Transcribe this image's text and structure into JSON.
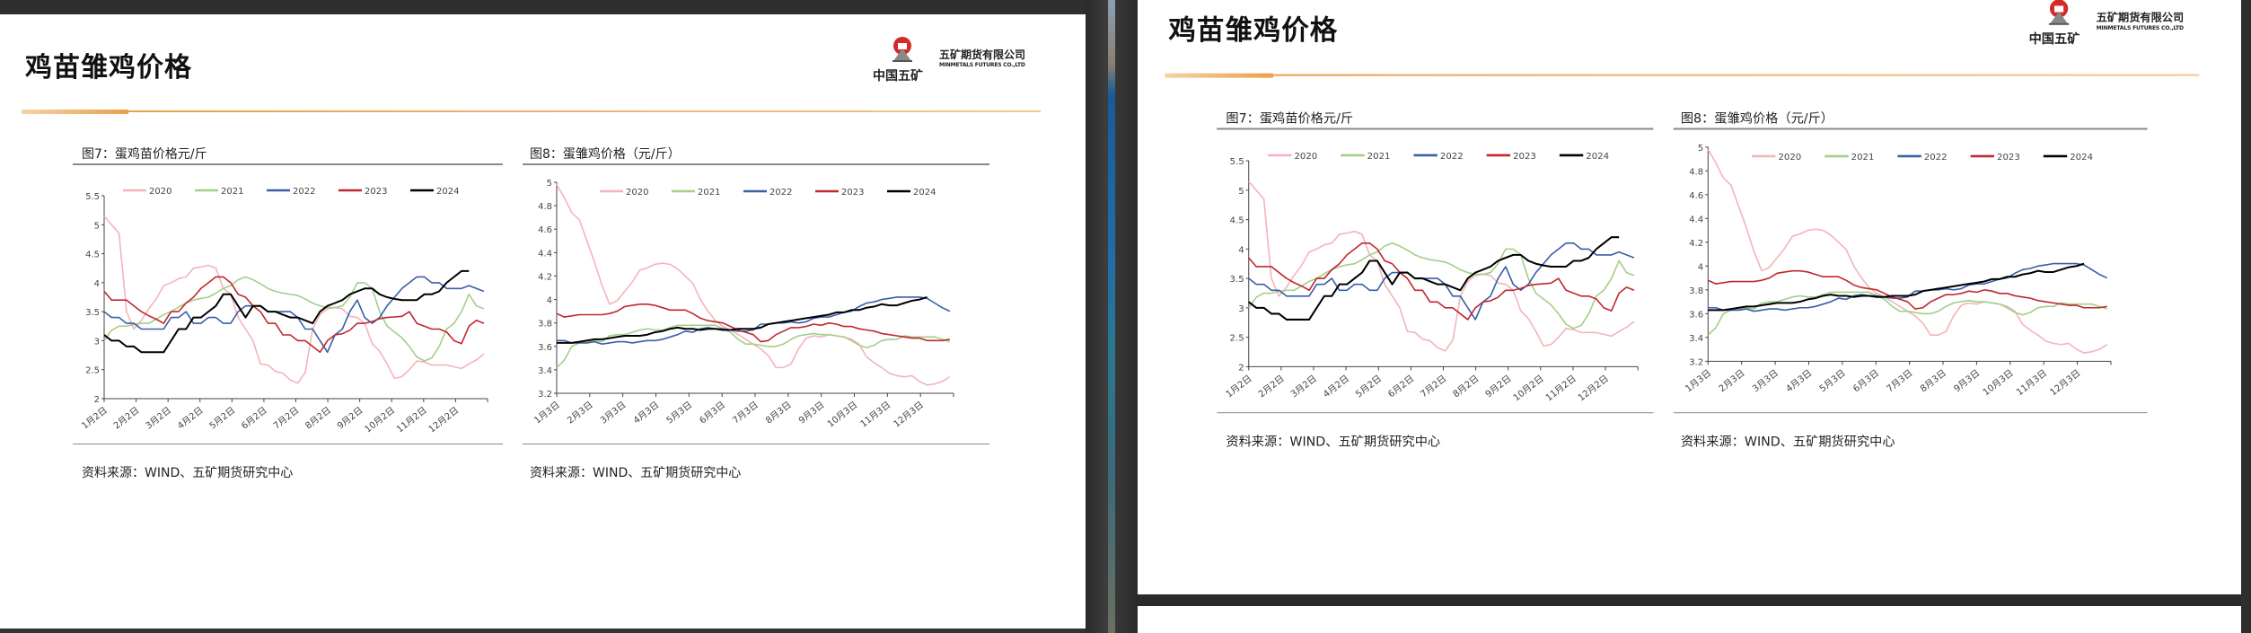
{
  "slide": {
    "title": "鸡苗雏鸡价格",
    "logo": {
      "group_name": "中国五矿",
      "company_cn": "五矿期货有限公司",
      "company_en": "MINMETALS FUTURES CO.,LTD"
    },
    "charts": [
      {
        "title": "图7：蛋鸡苗价格元/斤",
        "source": "资料来源：WIND、五矿期货研究中心"
      },
      {
        "title": "图8：蛋雏鸡价格（元/斤）",
        "source": "资料来源：WIND、五矿期货研究中心"
      }
    ]
  },
  "chart_data": [
    {
      "type": "line",
      "title": "图7：蛋鸡苗价格元/斤",
      "ylim": [
        2,
        5.5
      ],
      "yticks": [
        "2",
        "2.5",
        "3",
        "3.5",
        "4",
        "4.5",
        "5",
        "5.5"
      ],
      "x_tick_labels": [
        "1月2日",
        "2月2日",
        "3月2日",
        "4月2日",
        "5月2日",
        "6月2日",
        "7月2日",
        "8月2日",
        "9月2日",
        "10月2日",
        "11月2日",
        "12月2日"
      ],
      "legend": "top",
      "grid": false,
      "series": [
        {
          "name": "2020",
          "color": "#f4b4ba",
          "values": [
            5.15,
            5.0,
            4.85,
            3.5,
            3.2,
            3.35,
            3.55,
            3.72,
            3.95,
            4.0,
            4.07,
            4.1,
            4.25,
            4.27,
            4.3,
            4.25,
            3.9,
            3.8,
            3.4,
            3.2,
            3.0,
            2.6,
            2.58,
            2.47,
            2.44,
            2.32,
            2.27,
            2.45,
            3.2,
            3.45,
            3.55,
            3.57,
            3.55,
            3.42,
            3.4,
            3.3,
            2.95,
            2.82,
            2.6,
            2.35,
            2.38,
            2.5,
            2.65,
            2.63,
            2.58,
            2.58,
            2.58,
            2.55,
            2.52,
            2.6,
            2.67,
            2.77
          ]
        },
        {
          "name": "2021",
          "color": "#a4cf88",
          "values": [
            3.0,
            3.18,
            3.25,
            3.25,
            3.28,
            3.3,
            3.3,
            3.37,
            3.45,
            3.5,
            3.58,
            3.65,
            3.7,
            3.73,
            3.75,
            3.82,
            3.9,
            3.95,
            4.05,
            4.1,
            4.05,
            3.98,
            3.9,
            3.85,
            3.82,
            3.8,
            3.78,
            3.72,
            3.65,
            3.6,
            3.57,
            3.57,
            3.6,
            3.75,
            4.0,
            4.0,
            3.9,
            3.5,
            3.25,
            3.15,
            3.05,
            2.9,
            2.72,
            2.65,
            2.7,
            2.9,
            3.2,
            3.3,
            3.5,
            3.8,
            3.6,
            3.55
          ]
        },
        {
          "name": "2022",
          "color": "#3a5ea8",
          "values": [
            3.5,
            3.4,
            3.4,
            3.3,
            3.3,
            3.2,
            3.2,
            3.2,
            3.2,
            3.4,
            3.4,
            3.5,
            3.3,
            3.3,
            3.4,
            3.4,
            3.3,
            3.3,
            3.5,
            3.6,
            3.6,
            3.6,
            3.5,
            3.5,
            3.5,
            3.5,
            3.4,
            3.2,
            3.2,
            3.0,
            2.8,
            3.1,
            3.2,
            3.5,
            3.7,
            3.4,
            3.3,
            3.4,
            3.6,
            3.75,
            3.9,
            4.0,
            4.1,
            4.1,
            4.0,
            4.0,
            3.9,
            3.9,
            3.9,
            3.95,
            3.9,
            3.85
          ]
        },
        {
          "name": "2023",
          "color": "#c0282f",
          "values": [
            3.85,
            3.7,
            3.7,
            3.7,
            3.6,
            3.5,
            3.43,
            3.37,
            3.3,
            3.5,
            3.5,
            3.65,
            3.75,
            3.9,
            4.0,
            4.1,
            4.1,
            4.0,
            3.8,
            3.75,
            3.6,
            3.5,
            3.3,
            3.3,
            3.1,
            3.1,
            3.0,
            3.0,
            2.9,
            2.8,
            3.0,
            3.1,
            3.12,
            3.18,
            3.3,
            3.3,
            3.33,
            3.38,
            3.4,
            3.41,
            3.42,
            3.5,
            3.3,
            3.25,
            3.2,
            3.2,
            3.15,
            3.0,
            2.95,
            3.25,
            3.35,
            3.3
          ]
        },
        {
          "name": "2024",
          "color": "#000000",
          "values": [
            3.1,
            3.0,
            3.0,
            2.9,
            2.9,
            2.8,
            2.8,
            2.8,
            2.8,
            3.0,
            3.2,
            3.2,
            3.4,
            3.4,
            3.5,
            3.6,
            3.8,
            3.8,
            3.6,
            3.4,
            3.6,
            3.6,
            3.5,
            3.5,
            3.45,
            3.4,
            3.4,
            3.35,
            3.3,
            3.5,
            3.6,
            3.65,
            3.7,
            3.8,
            3.85,
            3.9,
            3.9,
            3.8,
            3.75,
            3.72,
            3.7,
            3.7,
            3.7,
            3.8,
            3.8,
            3.85,
            4.0,
            4.1,
            4.2,
            4.2
          ]
        }
      ]
    },
    {
      "type": "line",
      "title": "图8：蛋雏鸡价格（元/斤）",
      "ylim": [
        3.2,
        5
      ],
      "yticks": [
        "3.2",
        "3.4",
        "3.6",
        "3.8",
        "4",
        "4.2",
        "4.4",
        "4.6",
        "4.8",
        "5"
      ],
      "x_tick_labels": [
        "1月3日",
        "2月3日",
        "3月3日",
        "4月3日",
        "5月3日",
        "6月3日",
        "7月3日",
        "8月3日",
        "9月3日",
        "10月3日",
        "11月3日",
        "12月3日"
      ],
      "legend": "top",
      "grid": false,
      "series": [
        {
          "name": "2020",
          "color": "#f4b4ba",
          "values": [
            4.98,
            4.87,
            4.74,
            4.68,
            4.5,
            4.32,
            4.12,
            3.96,
            3.99,
            4.07,
            4.15,
            4.25,
            4.27,
            4.3,
            4.31,
            4.3,
            4.26,
            4.2,
            4.14,
            4.0,
            3.9,
            3.82,
            3.77,
            3.74,
            3.7,
            3.66,
            3.62,
            3.58,
            3.52,
            3.42,
            3.42,
            3.45,
            3.58,
            3.67,
            3.69,
            3.68,
            3.7,
            3.69,
            3.68,
            3.66,
            3.62,
            3.51,
            3.46,
            3.42,
            3.37,
            3.35,
            3.34,
            3.35,
            3.3,
            3.27,
            3.28,
            3.3,
            3.34
          ]
        },
        {
          "name": "2021",
          "color": "#a4cf88",
          "values": [
            3.42,
            3.48,
            3.6,
            3.63,
            3.64,
            3.65,
            3.64,
            3.69,
            3.7,
            3.7,
            3.72,
            3.74,
            3.75,
            3.74,
            3.74,
            3.76,
            3.78,
            3.78,
            3.78,
            3.78,
            3.78,
            3.78,
            3.75,
            3.72,
            3.66,
            3.62,
            3.62,
            3.61,
            3.6,
            3.6,
            3.62,
            3.66,
            3.69,
            3.7,
            3.71,
            3.7,
            3.7,
            3.69,
            3.68,
            3.65,
            3.61,
            3.59,
            3.61,
            3.65,
            3.66,
            3.66,
            3.69,
            3.68,
            3.68,
            3.68,
            3.68,
            3.66,
            3.64
          ]
        },
        {
          "name": "2022",
          "color": "#3a5ea8",
          "values": [
            3.65,
            3.65,
            3.63,
            3.63,
            3.63,
            3.64,
            3.62,
            3.63,
            3.64,
            3.64,
            3.63,
            3.64,
            3.65,
            3.65,
            3.66,
            3.68,
            3.7,
            3.73,
            3.72,
            3.75,
            3.76,
            3.75,
            3.75,
            3.74,
            3.73,
            3.73,
            3.74,
            3.79,
            3.79,
            3.8,
            3.8,
            3.81,
            3.8,
            3.81,
            3.84,
            3.85,
            3.85,
            3.87,
            3.89,
            3.9,
            3.94,
            3.97,
            3.98,
            4.0,
            4.01,
            4.02,
            4.02,
            4.02,
            4.02,
            4.01,
            3.97,
            3.93,
            3.9
          ]
        },
        {
          "name": "2023",
          "color": "#c0282f",
          "values": [
            3.88,
            3.85,
            3.86,
            3.87,
            3.87,
            3.87,
            3.87,
            3.88,
            3.9,
            3.94,
            3.95,
            3.96,
            3.96,
            3.95,
            3.93,
            3.91,
            3.91,
            3.91,
            3.88,
            3.84,
            3.82,
            3.81,
            3.8,
            3.77,
            3.74,
            3.72,
            3.7,
            3.64,
            3.65,
            3.7,
            3.73,
            3.76,
            3.76,
            3.77,
            3.79,
            3.78,
            3.8,
            3.79,
            3.77,
            3.77,
            3.75,
            3.74,
            3.73,
            3.71,
            3.7,
            3.69,
            3.68,
            3.67,
            3.67,
            3.65,
            3.65,
            3.65,
            3.66
          ]
        },
        {
          "name": "2024",
          "color": "#000000",
          "values": [
            3.63,
            3.63,
            3.63,
            3.64,
            3.65,
            3.66,
            3.66,
            3.67,
            3.68,
            3.69,
            3.69,
            3.69,
            3.7,
            3.72,
            3.73,
            3.75,
            3.76,
            3.75,
            3.75,
            3.74,
            3.75,
            3.75,
            3.74,
            3.74,
            3.75,
            3.75,
            3.75,
            3.76,
            3.79,
            3.8,
            3.81,
            3.82,
            3.83,
            3.84,
            3.85,
            3.86,
            3.87,
            3.89,
            3.89,
            3.91,
            3.91,
            3.93,
            3.94,
            3.96,
            3.95,
            3.95,
            3.97,
            3.99,
            4.0,
            4.02
          ]
        }
      ]
    }
  ]
}
